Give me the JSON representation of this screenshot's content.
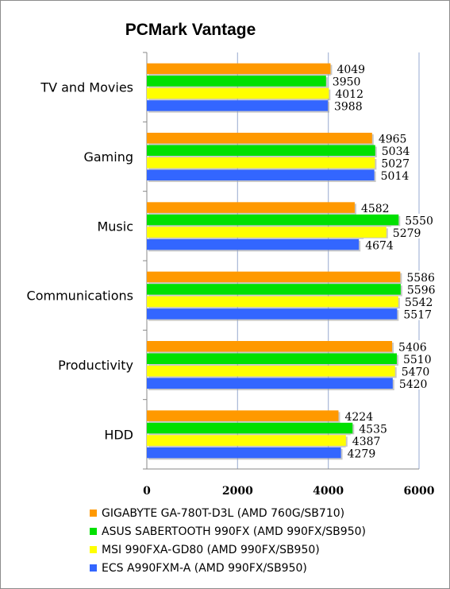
{
  "chart_data": {
    "type": "bar",
    "orientation": "horizontal",
    "title": "PCMark Vantage",
    "categories": [
      "TV and Movies",
      "Gaming",
      "Music",
      "Communications",
      "Productivity",
      "HDD"
    ],
    "xlim": [
      0,
      6000
    ],
    "xticks": [
      0,
      2000,
      4000,
      6000
    ],
    "grid": true,
    "legend_position": "bottom",
    "series": [
      {
        "name": "GIGABYTE GA-780T-D3L (AMD 760G/SB710)",
        "color": "#ff9900",
        "values": [
          4049,
          4965,
          4582,
          5586,
          5406,
          4224
        ]
      },
      {
        "name": "ASUS SABERTOOTH 990FX (AMD 990FX/SB950)",
        "color": "#00e000",
        "values": [
          3950,
          5034,
          5550,
          5596,
          5510,
          4535
        ]
      },
      {
        "name": "MSI 990FXA-GD80 (AMD 990FX/SB950)",
        "color": "#ffff00",
        "values": [
          4012,
          5027,
          5279,
          5542,
          5470,
          4387
        ]
      },
      {
        "name": "ECS A990FXM-A (AMD 990FX/SB950)",
        "color": "#3366ff",
        "values": [
          3988,
          5014,
          4674,
          5517,
          5420,
          4279
        ]
      }
    ]
  }
}
